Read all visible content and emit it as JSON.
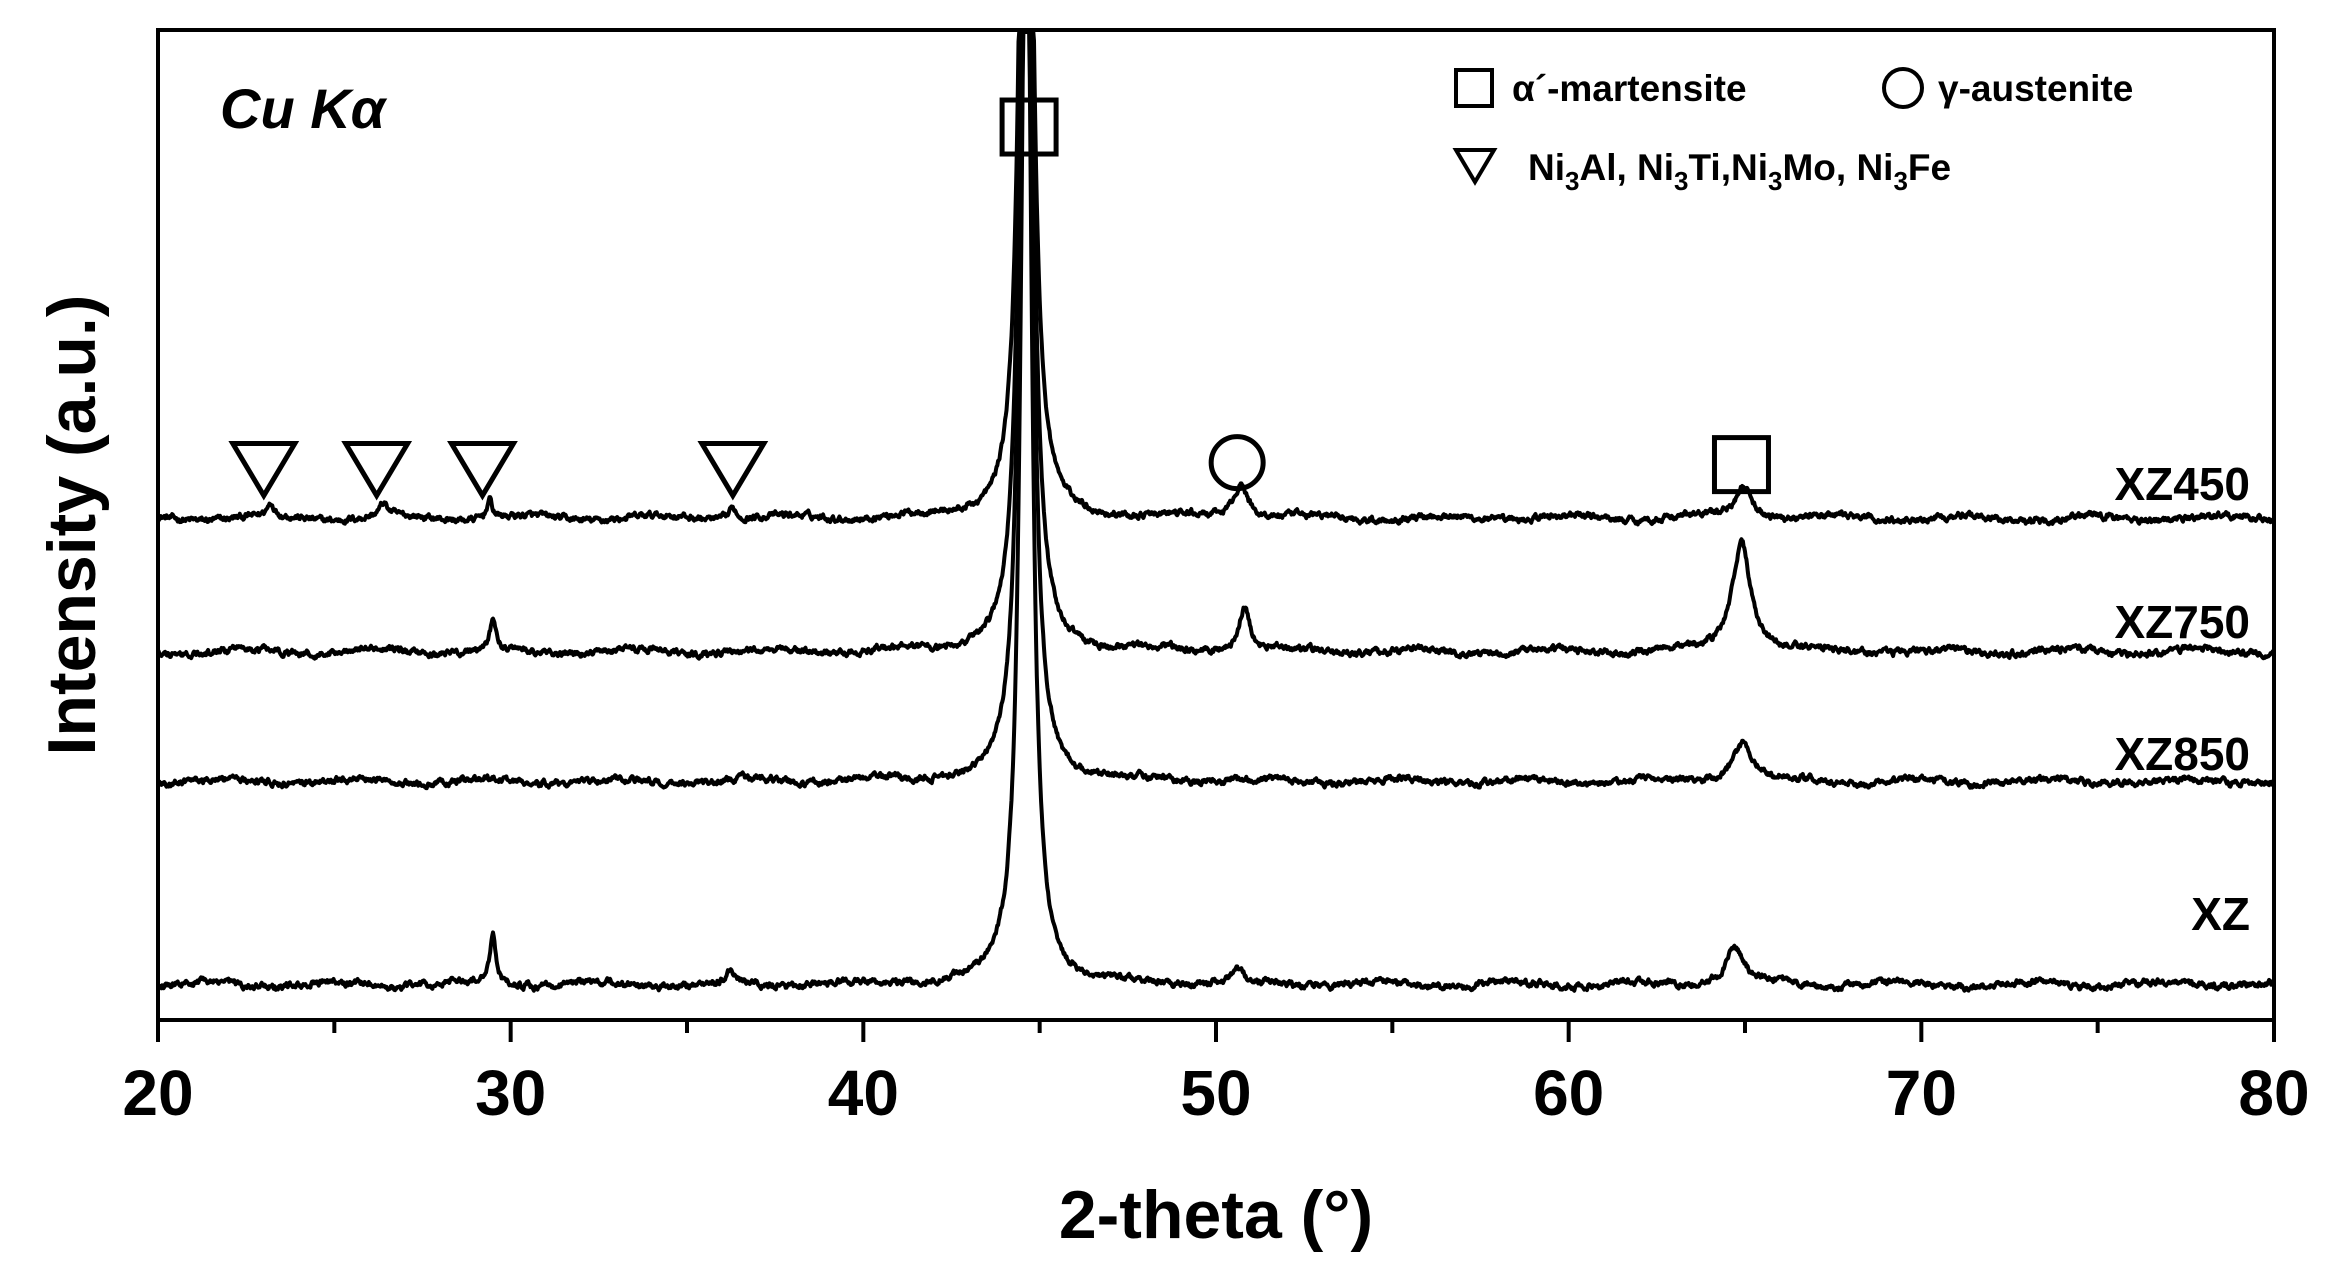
{
  "chart_data": {
    "type": "line",
    "title": "",
    "xlabel": "2-theta (°)",
    "ylabel": "Intensity (a.u.)",
    "xlim": [
      20,
      80
    ],
    "ylim": [
      0,
      100
    ],
    "x_major_ticks": [
      20,
      30,
      40,
      50,
      60,
      70,
      80
    ],
    "x_minor_ticks": [
      25,
      35,
      45,
      55,
      65,
      75
    ],
    "y_ticks_shown": false,
    "grid": false,
    "legend_position": "top-right",
    "annotation": "Cu Kα",
    "series": [
      {
        "name": "XZ450",
        "baseline": 50.7,
        "peaks": [
          {
            "x": 23.2,
            "h": 1.3,
            "w": 0.12
          },
          {
            "x": 26.4,
            "h": 1.3,
            "w": 0.15
          },
          {
            "x": 29.4,
            "h": 1.9,
            "w": 0.1
          },
          {
            "x": 36.3,
            "h": 1.2,
            "w": 0.12
          },
          {
            "x": 44.62,
            "h": 120,
            "w": 0.18
          },
          {
            "x": 50.7,
            "h": 3.5,
            "w": 0.25
          },
          {
            "x": 64.95,
            "h": 3.2,
            "w": 0.3
          }
        ]
      },
      {
        "name": "XZ750",
        "baseline": 37.2,
        "peaks": [
          {
            "x": 29.5,
            "h": 3.2,
            "w": 0.1
          },
          {
            "x": 44.62,
            "h": 120,
            "w": 0.18
          },
          {
            "x": 50.8,
            "h": 4.5,
            "w": 0.2
          },
          {
            "x": 64.9,
            "h": 11.2,
            "w": 0.32
          }
        ]
      },
      {
        "name": "XZ850",
        "baseline": 24.1,
        "peaks": [
          {
            "x": 44.62,
            "h": 120,
            "w": 0.18
          },
          {
            "x": 64.95,
            "h": 4.0,
            "w": 0.35
          }
        ]
      },
      {
        "name": "XZ",
        "baseline": 3.6,
        "peaks": [
          {
            "x": 29.5,
            "h": 5.0,
            "w": 0.1
          },
          {
            "x": 36.2,
            "h": 1.0,
            "w": 0.12
          },
          {
            "x": 44.62,
            "h": 120,
            "w": 0.18
          },
          {
            "x": 50.6,
            "h": 1.4,
            "w": 0.2
          },
          {
            "x": 64.7,
            "h": 3.9,
            "w": 0.3
          }
        ]
      }
    ],
    "phase_markers": [
      {
        "symbol": "triangle-down",
        "x": 23.0,
        "y": 55.6
      },
      {
        "symbol": "triangle-down",
        "x": 26.2,
        "y": 55.6
      },
      {
        "symbol": "triangle-down",
        "x": 29.2,
        "y": 55.6
      },
      {
        "symbol": "triangle-down",
        "x": 36.3,
        "y": 55.6
      },
      {
        "symbol": "square",
        "x": 44.7,
        "y": 90.2
      },
      {
        "symbol": "circle",
        "x": 50.6,
        "y": 56.3
      },
      {
        "symbol": "square",
        "x": 64.9,
        "y": 56.1
      }
    ],
    "legend": [
      {
        "symbol": "square",
        "text": "α´-martensite"
      },
      {
        "symbol": "circle",
        "text": "γ-austenite"
      },
      {
        "symbol": "triangle-down",
        "text": "Ni3Al, Ni3Ti,Ni3Mo, Ni3Fe"
      }
    ]
  },
  "colors": {
    "line": "#000000",
    "background": "#ffffff"
  }
}
